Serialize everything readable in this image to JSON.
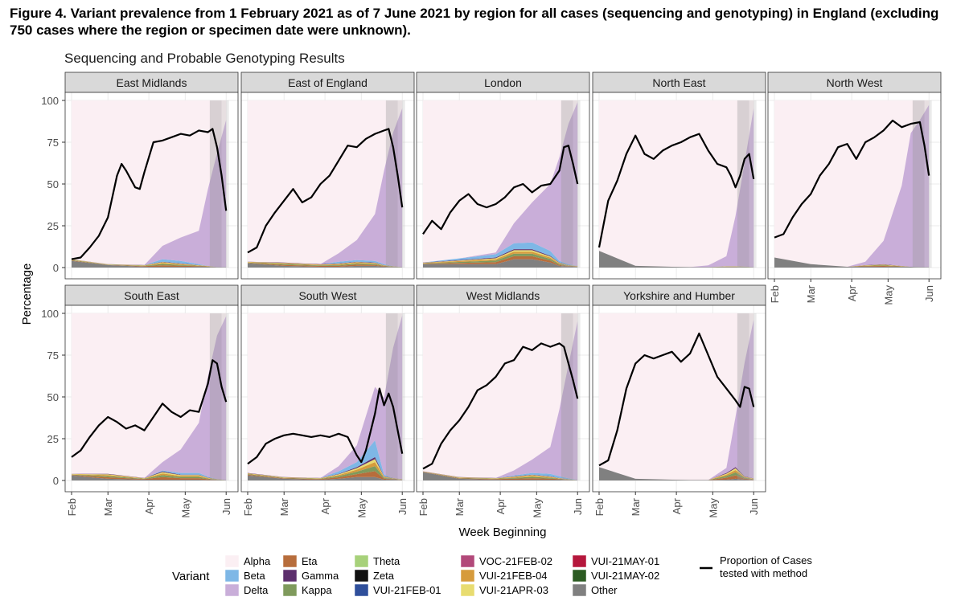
{
  "figure": {
    "title": "Figure 4. Variant prevalence from 1 February 2021 as of 7 June 2021 by region for all cases (sequencing and genotyping) in England (excluding 750 cases where the region or specimen date were unknown).",
    "subtitle": "Sequencing and Probable Genotyping Results"
  },
  "chart_data": {
    "type": "area",
    "title": "Sequencing and Probable Genotyping Results",
    "xlabel": "Week Beginning",
    "ylabel": "Percentage",
    "ylim": [
      0,
      100
    ],
    "yticks": [
      0,
      25,
      50,
      75,
      100
    ],
    "xticks": [
      "Feb",
      "Mar",
      "Apr",
      "May",
      "Jun"
    ],
    "xtick_weeks": [
      0,
      4,
      8.5,
      12.5,
      17
    ],
    "grid": true,
    "legend_position": "bottom",
    "legend_title": "Variant",
    "line_legend_label": "Proportion of Cases tested with method",
    "variants": [
      {
        "name": "Alpha",
        "color": "#fbeff3"
      },
      {
        "name": "Beta",
        "color": "#7eb7e6"
      },
      {
        "name": "Delta",
        "color": "#c9aed9"
      },
      {
        "name": "Eta",
        "color": "#b76d3c"
      },
      {
        "name": "Gamma",
        "color": "#5d2f6d"
      },
      {
        "name": "Kappa",
        "color": "#7f9a5c"
      },
      {
        "name": "Theta",
        "color": "#a7d17a"
      },
      {
        "name": "Zeta",
        "color": "#111111"
      },
      {
        "name": "VUI-21FEB-01",
        "color": "#2f4f9b"
      },
      {
        "name": "VOC-21FEB-02",
        "color": "#b2497a"
      },
      {
        "name": "VUI-21FEB-04",
        "color": "#d69b3c"
      },
      {
        "name": "VUI-21APR-03",
        "color": "#e8dc70"
      },
      {
        "name": "VUI-21MAY-01",
        "color": "#b5173c"
      },
      {
        "name": "VUI-21MAY-02",
        "color": "#2c5b22"
      },
      {
        "name": "Other",
        "color": "#808080"
      }
    ],
    "x_weeks": [
      0,
      4,
      8,
      10,
      12,
      14,
      15,
      16,
      17
    ],
    "panels": [
      {
        "name": "East Midlands",
        "delta": [
          0,
          0,
          0,
          8,
          14,
          20,
          46,
          68,
          88
        ],
        "beta": [
          0,
          0,
          0,
          1.5,
          1.5,
          0.5,
          0,
          0,
          0
        ],
        "minor": [
          1,
          0.5,
          1,
          3,
          2,
          1,
          0.5,
          0,
          0
        ],
        "other": [
          4,
          1.5,
          0.5,
          0.5,
          0.5,
          0.5,
          0.5,
          0.3,
          0.3
        ],
        "proportion": [
          [
            0,
            5
          ],
          [
            1,
            6
          ],
          [
            2,
            12
          ],
          [
            3,
            19
          ],
          [
            4,
            30
          ],
          [
            5,
            55
          ],
          [
            5.5,
            62
          ],
          [
            6,
            58
          ],
          [
            7,
            48
          ],
          [
            7.5,
            47
          ],
          [
            8,
            57
          ],
          [
            9,
            75
          ],
          [
            10,
            76
          ],
          [
            11,
            78
          ],
          [
            12,
            80
          ],
          [
            13,
            79
          ],
          [
            14,
            82
          ],
          [
            15,
            81
          ],
          [
            15.5,
            83
          ],
          [
            16,
            72
          ],
          [
            16.5,
            55
          ],
          [
            17,
            34
          ]
        ]
      },
      {
        "name": "East of England",
        "delta": [
          0,
          0,
          0,
          5,
          12,
          28,
          56,
          80,
          95
        ],
        "beta": [
          0,
          0,
          0,
          1,
          1,
          1,
          0.5,
          0,
          0
        ],
        "minor": [
          1,
          2,
          1.5,
          2,
          2.5,
          2,
          1,
          0.5,
          0
        ],
        "other": [
          2.5,
          1,
          0.5,
          0.5,
          1,
          1,
          0.5,
          0.3,
          0.3
        ],
        "proportion": [
          [
            0,
            9
          ],
          [
            1,
            12
          ],
          [
            2,
            25
          ],
          [
            3,
            33
          ],
          [
            4,
            40
          ],
          [
            5,
            47
          ],
          [
            6,
            39
          ],
          [
            7,
            42
          ],
          [
            8,
            50
          ],
          [
            9,
            55
          ],
          [
            10,
            64
          ],
          [
            11,
            73
          ],
          [
            12,
            72
          ],
          [
            13,
            77
          ],
          [
            14,
            80
          ],
          [
            15,
            82
          ],
          [
            15.5,
            83
          ],
          [
            16,
            72
          ],
          [
            16.5,
            55
          ],
          [
            17,
            36
          ]
        ]
      },
      {
        "name": "London",
        "delta": [
          0,
          0,
          1,
          12,
          24,
          40,
          62,
          84,
          98
        ],
        "beta": [
          0,
          1,
          2,
          3.5,
          4,
          3,
          1,
          0.5,
          0
        ],
        "minor": [
          1,
          2.5,
          4,
          6,
          6,
          4,
          2,
          1,
          0.5
        ],
        "other": [
          2,
          2,
          2,
          5,
          5,
          3,
          1,
          0.5,
          0.5
        ],
        "proportion": [
          [
            0,
            20
          ],
          [
            1,
            28
          ],
          [
            2,
            23
          ],
          [
            3,
            33
          ],
          [
            4,
            40
          ],
          [
            5,
            44
          ],
          [
            6,
            38
          ],
          [
            7,
            36
          ],
          [
            8,
            38
          ],
          [
            9,
            42
          ],
          [
            10,
            48
          ],
          [
            11,
            50
          ],
          [
            12,
            45
          ],
          [
            13,
            49
          ],
          [
            14,
            50
          ],
          [
            15,
            58
          ],
          [
            15.5,
            72
          ],
          [
            16,
            73
          ],
          [
            16.5,
            62
          ],
          [
            17,
            50
          ]
        ]
      },
      {
        "name": "North East",
        "delta": [
          0,
          0,
          0,
          0,
          1,
          6,
          30,
          62,
          95
        ],
        "beta": [
          0,
          0,
          0,
          0,
          0,
          0,
          0,
          0,
          0
        ],
        "minor": [
          0,
          0,
          0,
          0,
          0,
          0.5,
          0.5,
          0.3,
          0
        ],
        "other": [
          10,
          1,
          0.5,
          0.3,
          0.3,
          0.3,
          0.3,
          0.3,
          0.3
        ],
        "proportion": [
          [
            0,
            12
          ],
          [
            1,
            40
          ],
          [
            2,
            52
          ],
          [
            3,
            68
          ],
          [
            4,
            79
          ],
          [
            5,
            68
          ],
          [
            6,
            65
          ],
          [
            7,
            70
          ],
          [
            8,
            73
          ],
          [
            9,
            75
          ],
          [
            10,
            78
          ],
          [
            11,
            80
          ],
          [
            12,
            70
          ],
          [
            13,
            62
          ],
          [
            14,
            60
          ],
          [
            14.5,
            55
          ],
          [
            15,
            48
          ],
          [
            15.5,
            55
          ],
          [
            16,
            65
          ],
          [
            16.5,
            68
          ],
          [
            17,
            53
          ]
        ]
      },
      {
        "name": "North West",
        "delta": [
          0,
          0,
          0,
          2,
          14,
          48,
          80,
          88,
          97
        ],
        "beta": [
          0,
          0,
          0,
          0,
          0,
          0,
          0,
          0,
          0
        ],
        "minor": [
          0,
          0,
          0,
          1,
          1.5,
          0.5,
          0,
          0,
          0
        ],
        "other": [
          6,
          2,
          0.5,
          0.5,
          0.5,
          0.5,
          0.5,
          0.3,
          0.3
        ],
        "proportion": [
          [
            0,
            18
          ],
          [
            1,
            20
          ],
          [
            2,
            30
          ],
          [
            3,
            38
          ],
          [
            4,
            44
          ],
          [
            5,
            55
          ],
          [
            6,
            62
          ],
          [
            7,
            72
          ],
          [
            8,
            74
          ],
          [
            9,
            65
          ],
          [
            10,
            75
          ],
          [
            11,
            78
          ],
          [
            12,
            82
          ],
          [
            13,
            88
          ],
          [
            14,
            84
          ],
          [
            15,
            86
          ],
          [
            16,
            87
          ],
          [
            16.5,
            73
          ],
          [
            17,
            55
          ]
        ]
      },
      {
        "name": "South East",
        "delta": [
          0,
          0,
          0,
          5,
          14,
          30,
          60,
          86,
          98
        ],
        "beta": [
          0,
          0,
          0,
          0.5,
          1,
          1,
          0.5,
          0,
          0
        ],
        "minor": [
          1,
          3,
          1,
          5,
          3,
          3,
          1.5,
          0.5,
          0
        ],
        "other": [
          3,
          1,
          0.5,
          0.5,
          0.5,
          0.5,
          0.3,
          0.3,
          0.3
        ],
        "proportion": [
          [
            0,
            14
          ],
          [
            1,
            18
          ],
          [
            2,
            26
          ],
          [
            3,
            33
          ],
          [
            4,
            38
          ],
          [
            5,
            35
          ],
          [
            6,
            31
          ],
          [
            7,
            33
          ],
          [
            8,
            30
          ],
          [
            9,
            38
          ],
          [
            10,
            46
          ],
          [
            11,
            41
          ],
          [
            12,
            38
          ],
          [
            13,
            42
          ],
          [
            14,
            41
          ],
          [
            15,
            58
          ],
          [
            15.5,
            72
          ],
          [
            16,
            70
          ],
          [
            16.5,
            56
          ],
          [
            17,
            47
          ]
        ]
      },
      {
        "name": "South West",
        "delta": [
          0,
          0,
          0,
          3,
          10,
          32,
          46,
          78,
          98
        ],
        "beta": [
          0,
          0,
          0,
          1.5,
          3,
          10,
          1,
          0,
          0
        ],
        "minor": [
          1.5,
          1,
          1,
          3,
          6,
          12,
          2,
          1,
          0.5
        ],
        "other": [
          3,
          1,
          0.5,
          1,
          2,
          2,
          0.5,
          0.5,
          0.3
        ],
        "proportion": [
          [
            0,
            10
          ],
          [
            1,
            14
          ],
          [
            2,
            22
          ],
          [
            3,
            25
          ],
          [
            4,
            27
          ],
          [
            5,
            28
          ],
          [
            6,
            27
          ],
          [
            7,
            26
          ],
          [
            8,
            27
          ],
          [
            9,
            26
          ],
          [
            10,
            28
          ],
          [
            11,
            26
          ],
          [
            12,
            15
          ],
          [
            12.5,
            11
          ],
          [
            13,
            18
          ],
          [
            14,
            40
          ],
          [
            14.5,
            55
          ],
          [
            15,
            45
          ],
          [
            15.5,
            52
          ],
          [
            16,
            44
          ],
          [
            17,
            16
          ]
        ]
      },
      {
        "name": "West Midlands",
        "delta": [
          0,
          0,
          0,
          3,
          8,
          16,
          40,
          68,
          95
        ],
        "beta": [
          0,
          0,
          0,
          0.5,
          1,
          1.5,
          1,
          0.5,
          0
        ],
        "minor": [
          0.5,
          1,
          1,
          2,
          3,
          2,
          1,
          0.5,
          0
        ],
        "other": [
          5,
          1,
          0.5,
          0.5,
          0.5,
          0.5,
          0.5,
          0.3,
          0.3
        ],
        "proportion": [
          [
            0,
            7
          ],
          [
            1,
            10
          ],
          [
            2,
            22
          ],
          [
            3,
            30
          ],
          [
            4,
            36
          ],
          [
            5,
            44
          ],
          [
            6,
            54
          ],
          [
            7,
            57
          ],
          [
            8,
            62
          ],
          [
            9,
            70
          ],
          [
            10,
            72
          ],
          [
            11,
            80
          ],
          [
            12,
            78
          ],
          [
            13,
            82
          ],
          [
            14,
            80
          ],
          [
            15,
            82
          ],
          [
            15.5,
            80
          ],
          [
            16,
            70
          ],
          [
            16.5,
            60
          ],
          [
            17,
            49
          ]
        ]
      },
      {
        "name": "Yorkshire and Humber",
        "delta": [
          0,
          0,
          0,
          0,
          0,
          3,
          30,
          68,
          95
        ],
        "beta": [
          0,
          0,
          0,
          0,
          0,
          0,
          0,
          0,
          0
        ],
        "minor": [
          0,
          0,
          0,
          0,
          0,
          4,
          7,
          2,
          1
        ],
        "other": [
          8,
          1,
          0.5,
          0.3,
          0.3,
          0.5,
          1,
          0.5,
          0.3
        ],
        "proportion": [
          [
            0,
            9
          ],
          [
            1,
            12
          ],
          [
            2,
            30
          ],
          [
            3,
            55
          ],
          [
            4,
            70
          ],
          [
            5,
            75
          ],
          [
            6,
            73
          ],
          [
            7,
            75
          ],
          [
            8,
            77
          ],
          [
            9,
            71
          ],
          [
            10,
            76
          ],
          [
            11,
            88
          ],
          [
            12,
            75
          ],
          [
            13,
            62
          ],
          [
            14,
            55
          ],
          [
            15,
            48
          ],
          [
            15.5,
            44
          ],
          [
            16,
            56
          ],
          [
            16.5,
            55
          ],
          [
            17,
            44
          ]
        ]
      }
    ]
  }
}
